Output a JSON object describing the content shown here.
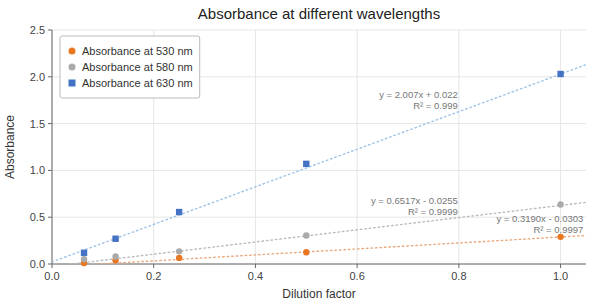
{
  "chart_data": {
    "type": "scatter",
    "title": "Absorbance at different wavelengths",
    "xlabel": "Dilution factor",
    "ylabel": "Absorbance",
    "xlim": [
      0,
      1.05
    ],
    "ylim": [
      0,
      2.5
    ],
    "xticks": [
      {
        "value": 0,
        "label": "0.0"
      },
      0.2,
      0.4,
      0.6,
      0.8,
      {
        "value": 1,
        "label": "1.0"
      }
    ],
    "yticks": [
      {
        "value": 0,
        "label": "0.0"
      },
      0.5,
      {
        "value": 1,
        "label": "1.0"
      },
      1.5,
      {
        "value": 2,
        "label": "2.0"
      },
      2.5
    ],
    "grid": true,
    "legend": "upper left",
    "series": [
      {
        "name": "Absorbance at 530 nm",
        "color": "#E87722",
        "marker": "circle",
        "x": [
          0.063,
          0.125,
          0.25,
          0.5,
          1.0
        ],
        "values": [
          0.01,
          0.04,
          0.065,
          0.125,
          0.29
        ],
        "trendline": {
          "slope": 0.319,
          "intercept": -0.0303,
          "color": "#E8A87C",
          "line_style": "dotted"
        },
        "annotations": [
          "y = 0.3190x - 0.0303",
          "R² = 0.9997"
        ]
      },
      {
        "name": "Absorbance at 580 nm",
        "color": "#AAAAAA",
        "marker": "circle",
        "x": [
          0.063,
          0.125,
          0.25,
          0.5,
          1.0
        ],
        "values": [
          0.05,
          0.08,
          0.135,
          0.305,
          0.635
        ],
        "trendline": {
          "slope": 0.6517,
          "intercept": -0.0255,
          "color": "#BBBBBB",
          "line_style": "dotted"
        },
        "annotations": [
          "y = 0.6517x - 0.0255",
          "R² = 0.9999"
        ]
      },
      {
        "name": "Absorbance at 630 nm",
        "color": "#4472C4",
        "marker": "square",
        "x": [
          0.063,
          0.125,
          0.25,
          0.5,
          1.0
        ],
        "values": [
          0.12,
          0.27,
          0.555,
          1.07,
          2.03
        ],
        "trendline": {
          "slope": 2.007,
          "intercept": 0.022,
          "color": "#9DC3E6",
          "line_style": "dotted"
        },
        "annotations": [
          "y = 2.007x + 0.022",
          "R² = 0.999"
        ]
      }
    ]
  }
}
